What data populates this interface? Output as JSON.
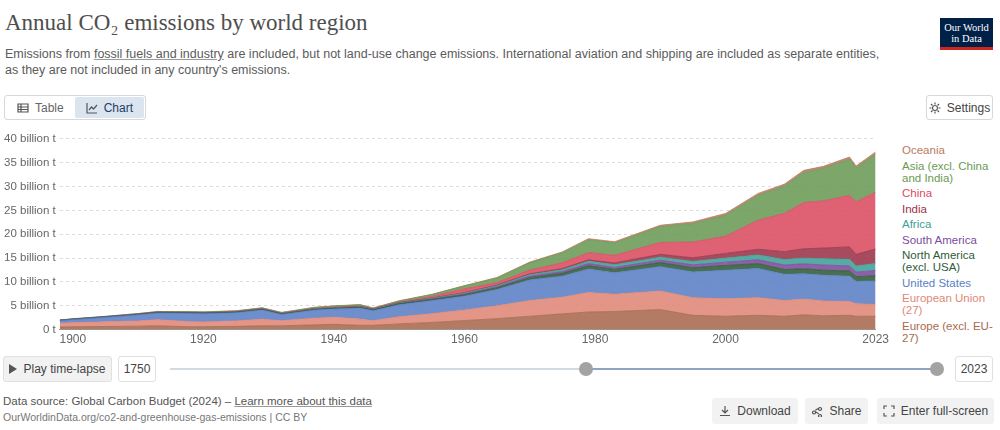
{
  "page": {
    "logo": [
      "Our World",
      "in Data"
    ],
    "tabs": [
      "Table",
      "Chart"
    ],
    "active_tab": "Chart",
    "settings": "Settings",
    "play": "Play time-lapse",
    "slider_min": 1750,
    "slider_max": 2023,
    "source": "Data source: Global Carbon Budget (2024) –",
    "source_link": "Learn more about this data",
    "url": "OurWorldinData.org/co2-and-greenhouse-gas-emissions | CC BY",
    "buttons": [
      "Download",
      "Share",
      "Enter full-screen"
    ]
  },
  "chart_data": {
    "type": "area",
    "stacked": true,
    "title": "Annual CO₂ emissions by world region",
    "subtitle": "Emissions from fossil fuels and industry are included, but not land-use change emissions. International aviation and shipping are included as separate entities, as they are not included in any country's emissions.",
    "subtitle_link": "fossil fuels and industry",
    "legend": "right",
    "grid": "y",
    "xlim": [
      1898,
      2023
    ],
    "xticks": [
      1900,
      1920,
      1940,
      1960,
      1980,
      2000,
      2023
    ],
    "ylim": [
      0,
      40
    ],
    "yticks": [
      {
        "value": 0,
        "label": "0 t"
      },
      {
        "value": 5,
        "label": "5 billion t"
      },
      {
        "value": 10,
        "label": "10 billion t"
      },
      {
        "value": 15,
        "label": "15 billion t"
      },
      {
        "value": 20,
        "label": "20 billion t"
      },
      {
        "value": 25,
        "label": "25 billion t"
      },
      {
        "value": 30,
        "label": "30 billion t"
      },
      {
        "value": 35,
        "label": "35 billion t"
      },
      {
        "value": 40,
        "label": "40 billion t"
      }
    ],
    "x": [
      1898,
      1900,
      1905,
      1910,
      1913,
      1918,
      1920,
      1925,
      1929,
      1932,
      1937,
      1940,
      1944,
      1946,
      1950,
      1955,
      1960,
      1965,
      1970,
      1975,
      1979,
      1983,
      1990,
      1995,
      2000,
      2005,
      2009,
      2012,
      2015,
      2019,
      2020,
      2023
    ],
    "series": [
      {
        "name": "Oceania",
        "color": "#b77a62",
        "values": [
          0.015,
          0.02,
          0.02,
          0.025,
          0.03,
          0.03,
          0.035,
          0.04,
          0.04,
          0.035,
          0.045,
          0.05,
          0.055,
          0.06,
          0.065,
          0.08,
          0.1,
          0.13,
          0.16,
          0.2,
          0.24,
          0.25,
          0.3,
          0.33,
          0.38,
          0.42,
          0.44,
          0.45,
          0.44,
          0.44,
          0.42,
          0.44
        ]
      },
      {
        "name": "Asia (excl. China and India)",
        "color": "#6a9a55",
        "values": [
          0.04,
          0.05,
          0.06,
          0.08,
          0.1,
          0.13,
          0.13,
          0.14,
          0.16,
          0.15,
          0.22,
          0.25,
          0.25,
          0.12,
          0.25,
          0.38,
          0.6,
          0.95,
          1.5,
          2.1,
          2.7,
          2.6,
          3.3,
          3.9,
          4.4,
          5.2,
          5.7,
          6.3,
          6.8,
          7.6,
          7.1,
          8.0
        ]
      },
      {
        "name": "China",
        "color": "#d94b61",
        "values": [
          0.005,
          0.006,
          0.01,
          0.015,
          0.02,
          0.025,
          0.025,
          0.03,
          0.035,
          0.04,
          0.06,
          0.08,
          0.1,
          0.06,
          0.08,
          0.3,
          0.78,
          0.5,
          0.8,
          1.2,
          1.5,
          1.6,
          2.5,
          3.3,
          3.6,
          6.1,
          8.0,
          9.7,
          9.9,
          10.8,
          11.0,
          11.9
        ]
      },
      {
        "name": "India",
        "color": "#9a3348",
        "values": [
          0.015,
          0.02,
          0.025,
          0.03,
          0.035,
          0.04,
          0.04,
          0.04,
          0.045,
          0.045,
          0.05,
          0.055,
          0.06,
          0.06,
          0.065,
          0.08,
          0.12,
          0.16,
          0.2,
          0.25,
          0.3,
          0.38,
          0.58,
          0.76,
          0.98,
          1.2,
          1.65,
          1.95,
          2.25,
          2.6,
          2.43,
          3.06
        ]
      },
      {
        "name": "Africa",
        "color": "#3f9f97",
        "values": [
          0.01,
          0.01,
          0.015,
          0.02,
          0.025,
          0.03,
          0.03,
          0.035,
          0.04,
          0.035,
          0.05,
          0.06,
          0.07,
          0.07,
          0.1,
          0.13,
          0.16,
          0.2,
          0.3,
          0.38,
          0.48,
          0.56,
          0.65,
          0.72,
          0.85,
          1.0,
          1.15,
          1.2,
          1.3,
          1.4,
          1.3,
          1.45
        ]
      },
      {
        "name": "South America",
        "color": "#7b4c9c",
        "values": [
          0.01,
          0.01,
          0.015,
          0.02,
          0.025,
          0.02,
          0.03,
          0.035,
          0.04,
          0.035,
          0.045,
          0.05,
          0.06,
          0.07,
          0.1,
          0.13,
          0.17,
          0.22,
          0.3,
          0.37,
          0.45,
          0.42,
          0.5,
          0.6,
          0.7,
          0.8,
          0.95,
          1.05,
          1.1,
          1.05,
          0.95,
          1.1
        ]
      },
      {
        "name": "North America (excl. USA)",
        "color": "#2f5b37",
        "values": [
          0.04,
          0.05,
          0.06,
          0.08,
          0.09,
          0.1,
          0.1,
          0.1,
          0.11,
          0.09,
          0.11,
          0.12,
          0.15,
          0.16,
          0.2,
          0.25,
          0.3,
          0.38,
          0.5,
          0.6,
          0.7,
          0.72,
          0.85,
          0.88,
          1.0,
          1.05,
          1.0,
          1.05,
          1.05,
          1.1,
          1.0,
          1.1
        ]
      },
      {
        "name": "United States",
        "color": "#5a80c4",
        "values": [
          0.55,
          0.66,
          0.95,
          1.28,
          1.4,
          1.75,
          1.71,
          1.7,
          1.93,
          1.3,
          1.7,
          1.72,
          2.3,
          2.1,
          2.5,
          2.7,
          2.9,
          3.4,
          4.3,
          4.4,
          4.9,
          4.5,
          5.1,
          5.4,
          6.0,
          6.1,
          5.5,
          5.3,
          5.4,
          5.3,
          4.7,
          4.9
        ]
      },
      {
        "name": "European Union (27)",
        "color": "#df8877",
        "values": [
          0.78,
          0.85,
          0.98,
          1.1,
          1.28,
          1.05,
          1.0,
          1.15,
          1.38,
          1.08,
          1.4,
          1.5,
          1.3,
          0.95,
          1.5,
          1.85,
          2.2,
          2.7,
          3.3,
          3.5,
          4.1,
          3.6,
          3.9,
          3.7,
          3.65,
          3.7,
          3.3,
          3.3,
          3.1,
          2.9,
          2.6,
          2.5
        ]
      },
      {
        "name": "Europe (excl. EU-27)",
        "color": "#a9694d",
        "values": [
          0.55,
          0.6,
          0.65,
          0.72,
          0.8,
          0.6,
          0.62,
          0.68,
          0.8,
          0.8,
          1.0,
          1.1,
          0.9,
          0.9,
          1.2,
          1.5,
          1.9,
          2.3,
          2.8,
          3.3,
          3.7,
          3.8,
          4.2,
          3.0,
          2.8,
          3.0,
          2.8,
          3.1,
          2.9,
          3.0,
          2.8,
          2.8
        ]
      }
    ]
  }
}
